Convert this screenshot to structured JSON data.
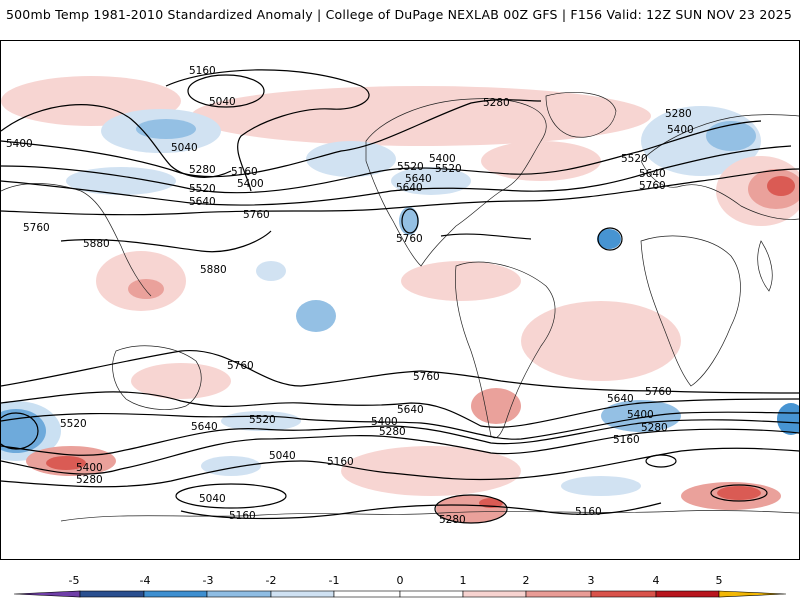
{
  "header": {
    "title_left": "500mb Temp 1981-2010 Standardized Anomaly | College of DuPage NEXLAB",
    "title_right": "00Z GFS | F156 Valid: 12Z SUN NOV 23 2025"
  },
  "colors": {
    "anomaly_m5": "#6f3ea8",
    "anomaly_m4": "#2a4f8f",
    "anomaly_m3": "#3e8fd0",
    "anomaly_m2": "#8fbde3",
    "anomaly_m1": "#cfe1f2",
    "anomaly_0": "#ffffff",
    "anomaly_p1": "#f7d3d0",
    "anomaly_p2": "#e99c96",
    "anomaly_p3": "#d9534b",
    "anomaly_p4": "#b8161e",
    "anomaly_p5": "#7a0710",
    "anomaly_p6": "#f2b705",
    "contour": "#000000",
    "coastline": "#222222"
  },
  "colorbar": {
    "ticks": [
      "-5",
      "-4",
      "-3",
      "-2",
      "-1",
      "0",
      "1",
      "2",
      "3",
      "4",
      "5"
    ]
  },
  "contours": {
    "labels": [
      "5160",
      "5040",
      "5280",
      "5400",
      "5520",
      "5640",
      "5760",
      "5880",
      "5040",
      "5160",
      "5280",
      "5400",
      "5520",
      "5640",
      "5760",
      "5520",
      "5400",
      "5640",
      "5760",
      "5880",
      "5280",
      "5400",
      "5520",
      "5640",
      "5760",
      "5760",
      "5760",
      "5640",
      "5640",
      "5760",
      "5520",
      "5400",
      "5280",
      "5400",
      "5280",
      "5520",
      "5640",
      "5400",
      "5280",
      "5160",
      "5040",
      "5160",
      "5040",
      "5160",
      "5280",
      "5160"
    ]
  }
}
